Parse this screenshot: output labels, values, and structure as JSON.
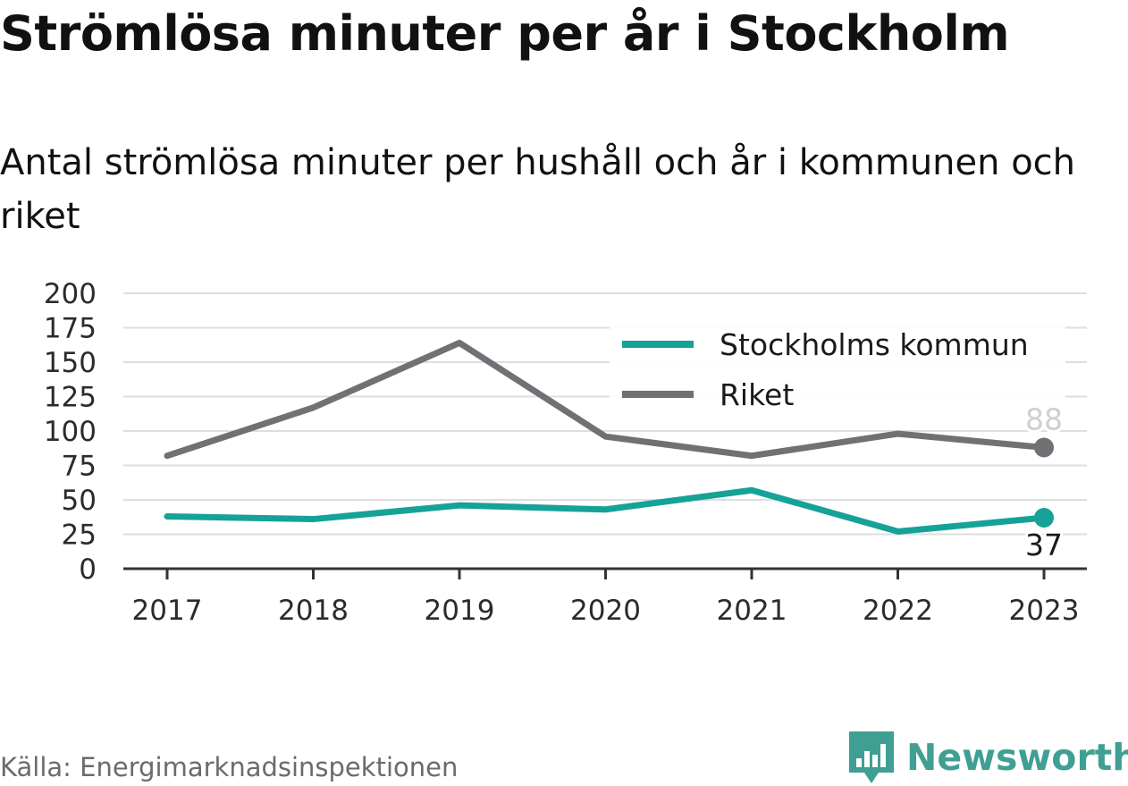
{
  "header": {
    "title": "Strömlösa minuter per år i Stockholm",
    "subtitle": "Antal strömlösa minuter per hushåll och år i kommunen och riket"
  },
  "footer": {
    "source": "Källa: Energimarknadsinspektionen",
    "brand": "Newsworthy",
    "brand_logo_icon": "bar-chart-speech-bubble-icon",
    "brand_color": "#3f9f92"
  },
  "chart_data": {
    "type": "line",
    "title": "Strömlösa minuter per år i Stockholm",
    "subtitle": "Antal strömlösa minuter per hushåll och år i kommunen och riket",
    "xlabel": "",
    "ylabel": "",
    "x": [
      "2017",
      "2018",
      "2019",
      "2020",
      "2021",
      "2022",
      "2023"
    ],
    "ylim": [
      0,
      200
    ],
    "yticks": [
      0,
      25,
      50,
      75,
      100,
      125,
      150,
      175,
      200
    ],
    "grid": true,
    "legend_position": "top-right",
    "series": [
      {
        "name": "Stockholms kommun",
        "color": "#16a297",
        "values": [
          38,
          36,
          46,
          43,
          57,
          27,
          37
        ],
        "end_label": "37"
      },
      {
        "name": "Riket",
        "color": "#707075",
        "values": [
          82,
          117,
          164,
          96,
          82,
          98,
          88
        ],
        "end_label": "88"
      }
    ]
  }
}
